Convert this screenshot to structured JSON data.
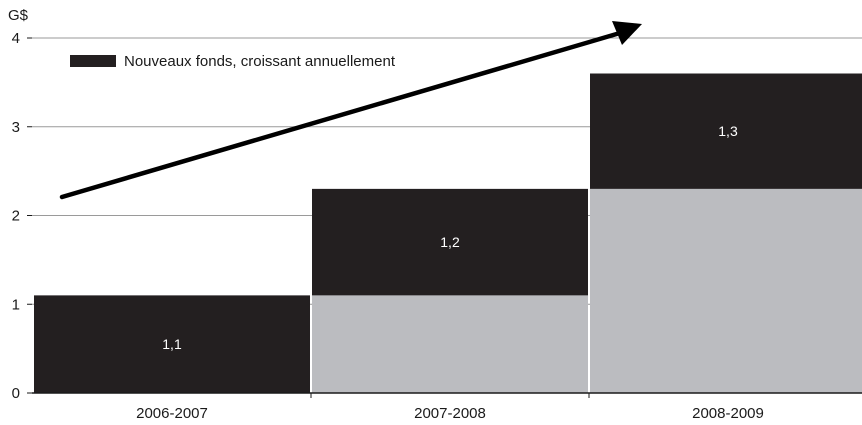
{
  "chart_data": {
    "type": "bar",
    "stacked": true,
    "unit": "G$",
    "categories": [
      "2006-2007",
      "2007-2008",
      "2008-2009"
    ],
    "series": [
      {
        "name": "",
        "color": "#bbbcc0",
        "values": [
          0,
          1.1,
          2.3
        ]
      },
      {
        "name": "Nouveaux fonds, croissant annuellement",
        "color": "#231f20",
        "values": [
          1.1,
          1.2,
          1.3
        ]
      }
    ],
    "data_labels": [
      "1,1",
      "1,2",
      "1,3"
    ],
    "y_ticks": [
      "0",
      "1",
      "2",
      "3",
      "4"
    ],
    "ylim": [
      0,
      4
    ],
    "grid": true,
    "legend": "top-left",
    "trend_arrow": true,
    "title": "",
    "xlabel": "",
    "ylabel": ""
  }
}
